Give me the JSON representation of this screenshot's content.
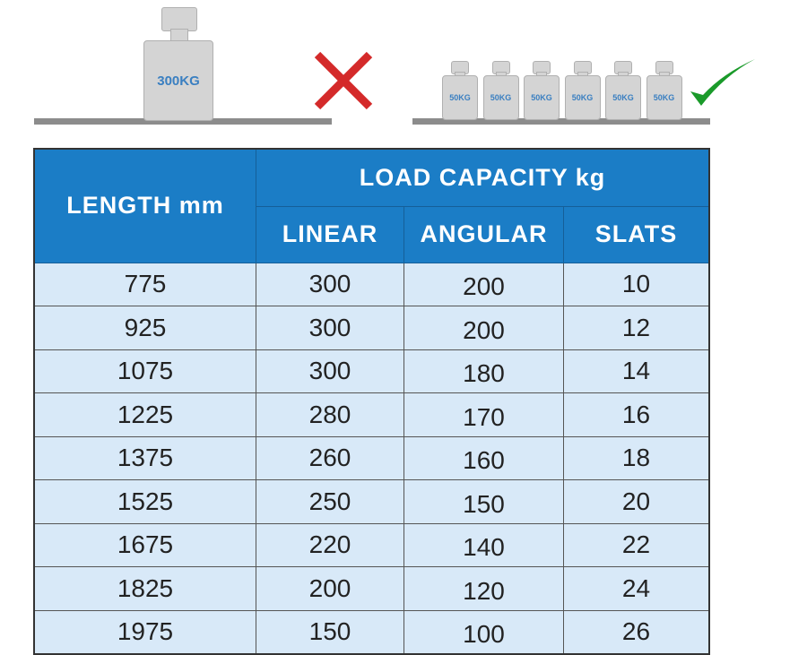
{
  "illustration": {
    "bad": {
      "weight_label": "300KG",
      "mark": "cross-icon",
      "mark_color": "#d42a2a"
    },
    "good": {
      "weight_labels": [
        "50KG",
        "50KG",
        "50KG",
        "50KG",
        "50KG",
        "50KG"
      ],
      "mark": "check-icon",
      "mark_color": "#1a9a2a"
    }
  },
  "table": {
    "header": {
      "length": "LENGTH mm",
      "load_capacity": "LOAD CAPACITY kg",
      "linear": "LINEAR",
      "angular": "ANGULAR",
      "slats": "SLATS"
    },
    "rows": [
      {
        "length": "775",
        "linear": "300",
        "angular": "200",
        "slats": "10"
      },
      {
        "length": "925",
        "linear": "300",
        "angular": "200",
        "slats": "12"
      },
      {
        "length": "1075",
        "linear": "300",
        "angular": "180",
        "slats": "14"
      },
      {
        "length": "1225",
        "linear": "280",
        "angular": "170",
        "slats": "16"
      },
      {
        "length": "1375",
        "linear": "260",
        "angular": "160",
        "slats": "18"
      },
      {
        "length": "1525",
        "linear": "250",
        "angular": "150",
        "slats": "20"
      },
      {
        "length": "1675",
        "linear": "220",
        "angular": "140",
        "slats": "22"
      },
      {
        "length": "1825",
        "linear": "200",
        "angular": "120",
        "slats": "24"
      },
      {
        "length": "1975",
        "linear": "150",
        "angular": "100",
        "slats": "26"
      }
    ],
    "colors": {
      "header_bg": "#1b7dc6",
      "row_bg": "#d8e9f8"
    }
  }
}
